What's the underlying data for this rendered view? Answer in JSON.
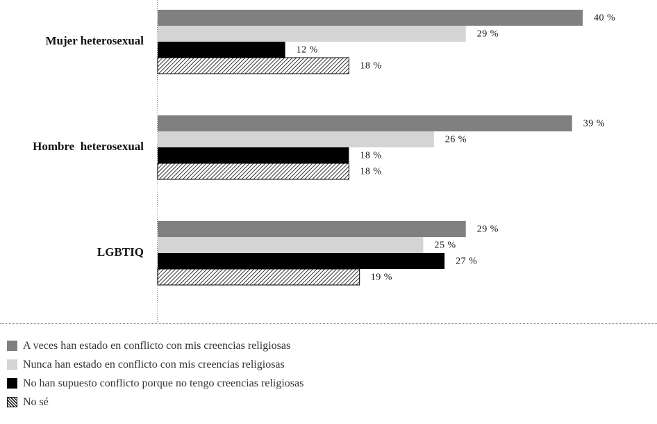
{
  "chart_data": {
    "type": "bar",
    "orientation": "horizontal",
    "categories": [
      "Mujer heterosexual",
      "Hombre  heterosexual",
      "LGBTIQ"
    ],
    "series": [
      {
        "name": "A veces han estado en conflicto con mis creencias religiosas",
        "values": [
          40,
          39,
          29
        ],
        "color": "#808080",
        "pattern": "solid"
      },
      {
        "name": "Nunca han estado en conflicto con mis creencias religiosas",
        "values": [
          29,
          26,
          25
        ],
        "color": "#d4d4d4",
        "pattern": "solid"
      },
      {
        "name": "No han supuesto conflicto porque no tengo creencias religiosas",
        "values": [
          12,
          18,
          27
        ],
        "color": "#000000",
        "pattern": "solid"
      },
      {
        "name": "No sé",
        "values": [
          18,
          18,
          19
        ],
        "color": "#000000",
        "pattern": "diagonal-hatch"
      }
    ],
    "value_suffix": " %",
    "xlim": [
      0,
      40
    ],
    "grid": false,
    "legend_position": "bottom"
  }
}
